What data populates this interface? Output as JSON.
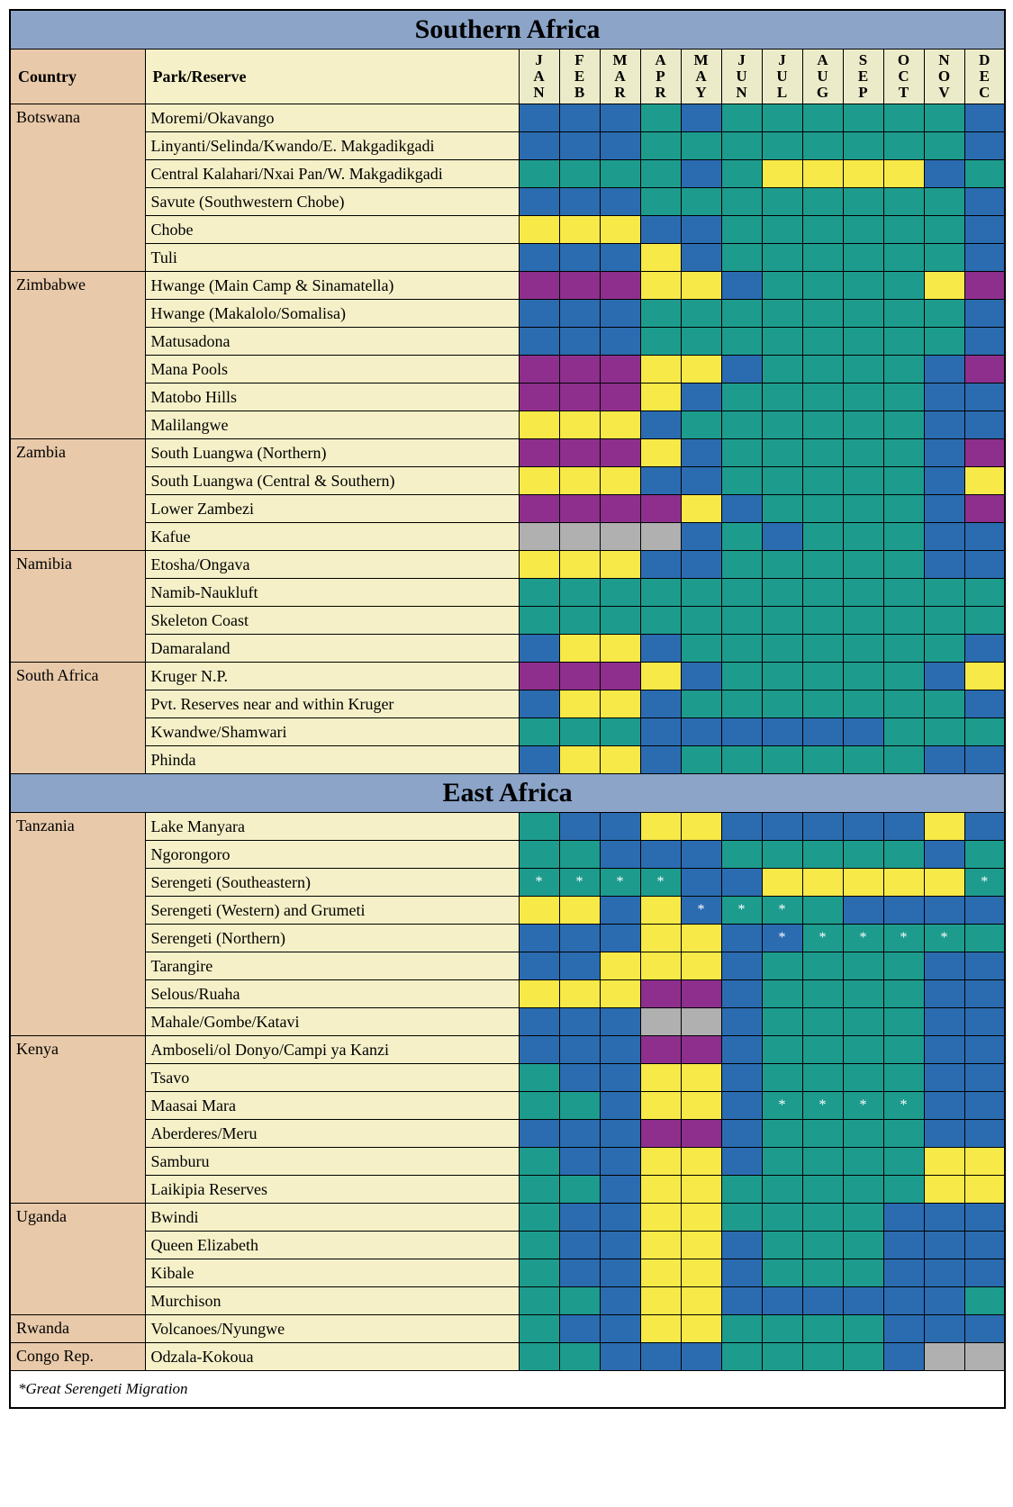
{
  "colors": {
    "blue": "#2b6cb0",
    "teal": "#1d9c8e",
    "yellow": "#f7e948",
    "purple": "#8e2f8e",
    "gray": "#b0b0b0"
  },
  "months": [
    "JAN",
    "FEB",
    "MAR",
    "APR",
    "MAY",
    "JUN",
    "JUL",
    "AUG",
    "SEP",
    "OCT",
    "NOV",
    "DEC"
  ],
  "column_headers": {
    "country": "Country",
    "park": "Park/Reserve"
  },
  "migration_mark": "*",
  "footnote": "*Great Serengeti Migration",
  "regions": [
    {
      "name": "Southern Africa",
      "show_headers": true,
      "countries": [
        {
          "name": "Botswana",
          "parks": [
            {
              "name": "Moremi/Okavango",
              "months": [
                "blue",
                "blue",
                "blue",
                "teal",
                "blue",
                "teal",
                "teal",
                "teal",
                "teal",
                "teal",
                "teal",
                "blue"
              ]
            },
            {
              "name": "Linyanti/Selinda/Kwando/E. Makgadikgadi",
              "months": [
                "blue",
                "blue",
                "blue",
                "teal",
                "teal",
                "teal",
                "teal",
                "teal",
                "teal",
                "teal",
                "teal",
                "blue"
              ]
            },
            {
              "name": "Central Kalahari/Nxai Pan/W. Makgadikgadi",
              "months": [
                "teal",
                "teal",
                "teal",
                "teal",
                "blue",
                "teal",
                "yellow",
                "yellow",
                "yellow",
                "yellow",
                "blue",
                "teal"
              ]
            },
            {
              "name": "Savute (Southwestern Chobe)",
              "months": [
                "blue",
                "blue",
                "blue",
                "teal",
                "teal",
                "teal",
                "teal",
                "teal",
                "teal",
                "teal",
                "teal",
                "blue"
              ]
            },
            {
              "name": "Chobe",
              "months": [
                "yellow",
                "yellow",
                "yellow",
                "blue",
                "blue",
                "teal",
                "teal",
                "teal",
                "teal",
                "teal",
                "teal",
                "blue"
              ]
            },
            {
              "name": "Tuli",
              "months": [
                "blue",
                "blue",
                "blue",
                "yellow",
                "blue",
                "teal",
                "teal",
                "teal",
                "teal",
                "teal",
                "teal",
                "blue"
              ]
            }
          ]
        },
        {
          "name": "Zimbabwe",
          "parks": [
            {
              "name": "Hwange (Main Camp & Sinamatella)",
              "months": [
                "purple",
                "purple",
                "purple",
                "yellow",
                "yellow",
                "blue",
                "teal",
                "teal",
                "teal",
                "teal",
                "yellow",
                "purple"
              ]
            },
            {
              "name": "Hwange (Makalolo/Somalisa)",
              "months": [
                "blue",
                "blue",
                "blue",
                "teal",
                "teal",
                "teal",
                "teal",
                "teal",
                "teal",
                "teal",
                "teal",
                "blue"
              ]
            },
            {
              "name": "Matusadona",
              "months": [
                "blue",
                "blue",
                "blue",
                "teal",
                "teal",
                "teal",
                "teal",
                "teal",
                "teal",
                "teal",
                "teal",
                "blue"
              ]
            },
            {
              "name": "Mana Pools",
              "months": [
                "purple",
                "purple",
                "purple",
                "yellow",
                "yellow",
                "blue",
                "teal",
                "teal",
                "teal",
                "teal",
                "blue",
                "purple"
              ]
            },
            {
              "name": "Matobo Hills",
              "months": [
                "purple",
                "purple",
                "purple",
                "yellow",
                "blue",
                "teal",
                "teal",
                "teal",
                "teal",
                "teal",
                "blue",
                "blue"
              ]
            },
            {
              "name": "Malilangwe",
              "months": [
                "yellow",
                "yellow",
                "yellow",
                "blue",
                "teal",
                "teal",
                "teal",
                "teal",
                "teal",
                "teal",
                "blue",
                "blue"
              ]
            }
          ]
        },
        {
          "name": "Zambia",
          "parks": [
            {
              "name": "South Luangwa (Northern)",
              "months": [
                "purple",
                "purple",
                "purple",
                "yellow",
                "blue",
                "teal",
                "teal",
                "teal",
                "teal",
                "teal",
                "blue",
                "purple"
              ]
            },
            {
              "name": "South Luangwa (Central & Southern)",
              "months": [
                "yellow",
                "yellow",
                "yellow",
                "blue",
                "blue",
                "teal",
                "teal",
                "teal",
                "teal",
                "teal",
                "blue",
                "yellow"
              ]
            },
            {
              "name": "Lower Zambezi",
              "months": [
                "purple",
                "purple",
                "purple",
                "purple",
                "yellow",
                "blue",
                "teal",
                "teal",
                "teal",
                "teal",
                "blue",
                "purple"
              ]
            },
            {
              "name": "Kafue",
              "months": [
                "gray",
                "gray",
                "gray",
                "gray",
                "blue",
                "teal",
                "blue",
                "teal",
                "teal",
                "teal",
                "blue",
                "blue"
              ]
            }
          ]
        },
        {
          "name": "Namibia",
          "parks": [
            {
              "name": "Etosha/Ongava",
              "months": [
                "yellow",
                "yellow",
                "yellow",
                "blue",
                "blue",
                "teal",
                "teal",
                "teal",
                "teal",
                "teal",
                "blue",
                "blue"
              ]
            },
            {
              "name": "Namib-Naukluft",
              "months": [
                "teal",
                "teal",
                "teal",
                "teal",
                "teal",
                "teal",
                "teal",
                "teal",
                "teal",
                "teal",
                "teal",
                "teal"
              ]
            },
            {
              "name": "Skeleton Coast",
              "months": [
                "teal",
                "teal",
                "teal",
                "teal",
                "teal",
                "teal",
                "teal",
                "teal",
                "teal",
                "teal",
                "teal",
                "teal"
              ]
            },
            {
              "name": "Damaraland",
              "months": [
                "blue",
                "yellow",
                "yellow",
                "blue",
                "teal",
                "teal",
                "teal",
                "teal",
                "teal",
                "teal",
                "teal",
                "blue"
              ]
            }
          ]
        },
        {
          "name": "South Africa",
          "parks": [
            {
              "name": "Kruger N.P.",
              "months": [
                "purple",
                "purple",
                "purple",
                "yellow",
                "blue",
                "teal",
                "teal",
                "teal",
                "teal",
                "teal",
                "blue",
                "yellow"
              ]
            },
            {
              "name": "Pvt. Reserves near and within Kruger",
              "months": [
                "blue",
                "yellow",
                "yellow",
                "blue",
                "teal",
                "teal",
                "teal",
                "teal",
                "teal",
                "teal",
                "teal",
                "blue"
              ]
            },
            {
              "name": "Kwandwe/Shamwari",
              "months": [
                "teal",
                "teal",
                "teal",
                "blue",
                "blue",
                "blue",
                "blue",
                "blue",
                "blue",
                "teal",
                "teal",
                "teal"
              ]
            },
            {
              "name": "Phinda",
              "months": [
                "blue",
                "yellow",
                "yellow",
                "blue",
                "teal",
                "teal",
                "teal",
                "teal",
                "teal",
                "teal",
                "blue",
                "blue"
              ]
            }
          ]
        }
      ]
    },
    {
      "name": "East Africa",
      "show_headers": false,
      "countries": [
        {
          "name": "Tanzania",
          "parks": [
            {
              "name": "Lake Manyara",
              "months": [
                "teal",
                "blue",
                "blue",
                "yellow",
                "yellow",
                "blue",
                "blue",
                "blue",
                "blue",
                "blue",
                "yellow",
                "blue"
              ]
            },
            {
              "name": "Ngorongoro",
              "months": [
                "teal",
                "teal",
                "blue",
                "blue",
                "blue",
                "teal",
                "teal",
                "teal",
                "teal",
                "teal",
                "blue",
                "teal"
              ]
            },
            {
              "name": "Serengeti (Southeastern)",
              "months": [
                "teal",
                "teal",
                "teal",
                "teal",
                "blue",
                "blue",
                "yellow",
                "yellow",
                "yellow",
                "yellow",
                "yellow",
                "teal"
              ],
              "marks": [
                0,
                1,
                2,
                3,
                11
              ]
            },
            {
              "name": "Serengeti (Western) and Grumeti",
              "months": [
                "yellow",
                "yellow",
                "blue",
                "yellow",
                "blue",
                "teal",
                "teal",
                "teal",
                "blue",
                "blue",
                "blue",
                "blue"
              ],
              "marks": [
                4,
                5,
                6
              ]
            },
            {
              "name": "Serengeti (Northern)",
              "months": [
                "blue",
                "blue",
                "blue",
                "yellow",
                "yellow",
                "blue",
                "blue",
                "teal",
                "teal",
                "teal",
                "teal",
                "teal"
              ],
              "marks": [
                6,
                7,
                8,
                9,
                10
              ]
            },
            {
              "name": "Tarangire",
              "months": [
                "blue",
                "blue",
                "yellow",
                "yellow",
                "yellow",
                "blue",
                "teal",
                "teal",
                "teal",
                "teal",
                "blue",
                "blue"
              ]
            },
            {
              "name": "Selous/Ruaha",
              "months": [
                "yellow",
                "yellow",
                "yellow",
                "purple",
                "purple",
                "blue",
                "teal",
                "teal",
                "teal",
                "teal",
                "blue",
                "blue"
              ]
            },
            {
              "name": "Mahale/Gombe/Katavi",
              "months": [
                "blue",
                "blue",
                "blue",
                "gray",
                "gray",
                "blue",
                "teal",
                "teal",
                "teal",
                "teal",
                "blue",
                "blue"
              ]
            }
          ]
        },
        {
          "name": "Kenya",
          "parks": [
            {
              "name": "Amboseli/ol Donyo/Campi ya Kanzi",
              "months": [
                "blue",
                "blue",
                "blue",
                "purple",
                "purple",
                "blue",
                "teal",
                "teal",
                "teal",
                "teal",
                "blue",
                "blue"
              ]
            },
            {
              "name": "Tsavo",
              "months": [
                "teal",
                "blue",
                "blue",
                "yellow",
                "yellow",
                "blue",
                "teal",
                "teal",
                "teal",
                "teal",
                "blue",
                "blue"
              ]
            },
            {
              "name": "Maasai Mara",
              "months": [
                "teal",
                "teal",
                "blue",
                "yellow",
                "yellow",
                "blue",
                "teal",
                "teal",
                "teal",
                "teal",
                "blue",
                "blue"
              ],
              "marks": [
                6,
                7,
                8,
                9
              ]
            },
            {
              "name": "Aberderes/Meru",
              "months": [
                "blue",
                "blue",
                "blue",
                "purple",
                "purple",
                "blue",
                "teal",
                "teal",
                "teal",
                "teal",
                "blue",
                "blue"
              ]
            },
            {
              "name": "Samburu",
              "months": [
                "teal",
                "blue",
                "blue",
                "yellow",
                "yellow",
                "blue",
                "teal",
                "teal",
                "teal",
                "teal",
                "yellow",
                "yellow"
              ]
            },
            {
              "name": "Laikipia Reserves",
              "months": [
                "teal",
                "teal",
                "blue",
                "yellow",
                "yellow",
                "teal",
                "teal",
                "teal",
                "teal",
                "teal",
                "yellow",
                "yellow"
              ]
            }
          ]
        },
        {
          "name": "Uganda",
          "parks": [
            {
              "name": "Bwindi",
              "months": [
                "teal",
                "blue",
                "blue",
                "yellow",
                "yellow",
                "teal",
                "teal",
                "teal",
                "teal",
                "blue",
                "blue",
                "blue"
              ]
            },
            {
              "name": "Queen Elizabeth",
              "months": [
                "teal",
                "blue",
                "blue",
                "yellow",
                "yellow",
                "blue",
                "teal",
                "teal",
                "teal",
                "blue",
                "blue",
                "blue"
              ]
            },
            {
              "name": "Kibale",
              "months": [
                "teal",
                "blue",
                "blue",
                "yellow",
                "yellow",
                "blue",
                "teal",
                "teal",
                "teal",
                "blue",
                "blue",
                "blue"
              ]
            },
            {
              "name": "Murchison",
              "months": [
                "teal",
                "teal",
                "blue",
                "yellow",
                "yellow",
                "blue",
                "blue",
                "blue",
                "blue",
                "blue",
                "blue",
                "teal"
              ]
            }
          ]
        },
        {
          "name": "Rwanda",
          "parks": [
            {
              "name": "Volcanoes/Nyungwe",
              "months": [
                "teal",
                "blue",
                "blue",
                "yellow",
                "yellow",
                "teal",
                "teal",
                "teal",
                "teal",
                "blue",
                "blue",
                "blue"
              ]
            }
          ]
        },
        {
          "name": "Congo Rep.",
          "parks": [
            {
              "name": "Odzala-Kokoua",
              "months": [
                "teal",
                "teal",
                "blue",
                "blue",
                "blue",
                "teal",
                "teal",
                "teal",
                "teal",
                "blue",
                "gray",
                "gray"
              ]
            }
          ]
        }
      ]
    }
  ]
}
